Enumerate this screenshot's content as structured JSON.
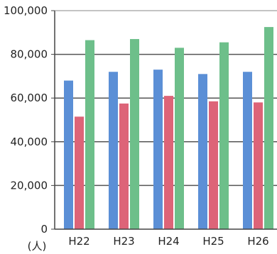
{
  "chart_data": {
    "type": "bar",
    "categories": [
      "H22",
      "H23",
      "H24",
      "H25",
      "H26"
    ],
    "series": [
      {
        "values": [
          68000,
          72000,
          73000,
          71000,
          72000
        ]
      },
      {
        "values": [
          51500,
          57500,
          61000,
          58500,
          58000
        ]
      },
      {
        "values": [
          86500,
          87000,
          83000,
          85500,
          92500
        ]
      }
    ],
    "ylim": [
      0,
      100000
    ],
    "yticks": [
      0,
      20000,
      40000,
      60000,
      80000,
      100000
    ],
    "ytick_labels": [
      "0",
      "20,000",
      "40,000",
      "60,000",
      "80,000",
      "100,000"
    ],
    "yunit": "(人)",
    "grid": true,
    "colors": [
      "#5b8fd6",
      "#dd6478",
      "#6dbf8a"
    ]
  }
}
